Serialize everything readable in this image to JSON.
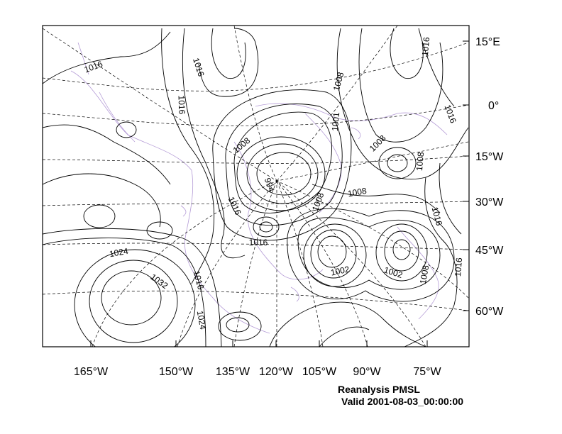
{
  "map": {
    "right_labels": [
      "15°E",
      "0°",
      "15°W",
      "30°W",
      "45°W",
      "60°W"
    ],
    "bottom_labels": [
      "165°W",
      "150°W",
      "135°W",
      "120°W",
      "105°W",
      "90°W",
      "75°W"
    ],
    "contour_labels": [
      "1016",
      "1016",
      "1016",
      "1008",
      "1016",
      "1016",
      "1008",
      "1001",
      "1008",
      "1008",
      "994",
      "1008",
      "1016",
      "1008",
      "1016",
      "1024",
      "1032",
      "1016",
      "1024",
      "1002",
      "1002",
      "1008",
      "1016"
    ],
    "contour_interval": 4,
    "title": "Reanalysis PMSL",
    "valid": "Valid 2001-08-03_00:00:00",
    "colors": {
      "contour": "#000000",
      "coastline": "#b49bd6",
      "graticule": "#000000"
    }
  }
}
